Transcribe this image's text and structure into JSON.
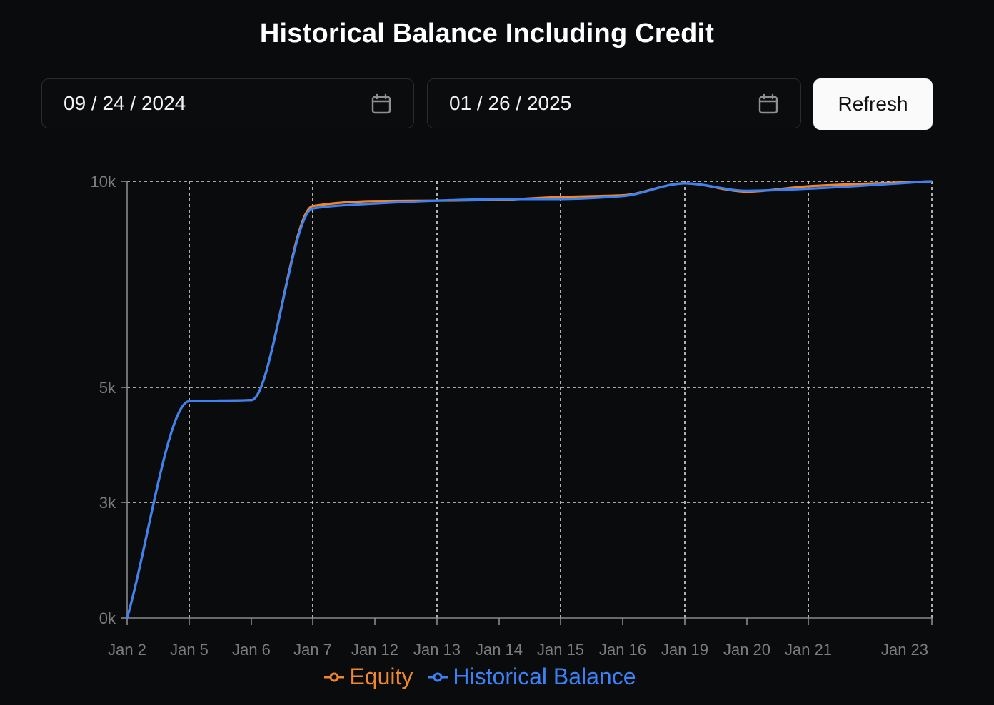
{
  "title": "Historical Balance Including Credit",
  "start_date": "09 / 24 / 2024",
  "end_date": "01 / 26 / 2025",
  "refresh_label": "Refresh",
  "colors": {
    "equity": "#f0872c",
    "historical_balance": "#3b82f6",
    "grid": "#d9d9d9",
    "axis": "#8a8a8a",
    "tick_label": "#7d7d7d"
  },
  "chart_data": {
    "type": "line",
    "categories": [
      "Jan 2",
      "Jan 5",
      "Jan 6",
      "Jan 7",
      "Jan 12",
      "Jan 13",
      "Jan 14",
      "Jan 15",
      "Jan 16",
      "Jan 19",
      "Jan 20",
      "Jan 21",
      "Jan 23"
    ],
    "y_ticks": [
      0,
      3000,
      5000,
      10000
    ],
    "y_tick_labels": [
      "0k",
      "3k",
      "5k",
      "10k"
    ],
    "ylim": [
      0,
      10000
    ],
    "grid": true,
    "legend_placement": "bottom-center",
    "series": [
      {
        "name": "Equity",
        "color": "#f0872c",
        "values": [
          0,
          4760,
          4780,
          9400,
          9520,
          9530,
          9550,
          9620,
          9660,
          9950,
          9750,
          9880,
          10000
        ]
      },
      {
        "name": "Historical Balance",
        "color": "#3b82f6",
        "values": [
          0,
          4760,
          4780,
          9340,
          9460,
          9530,
          9570,
          9570,
          9640,
          9950,
          9770,
          9820,
          10000
        ]
      }
    ]
  }
}
